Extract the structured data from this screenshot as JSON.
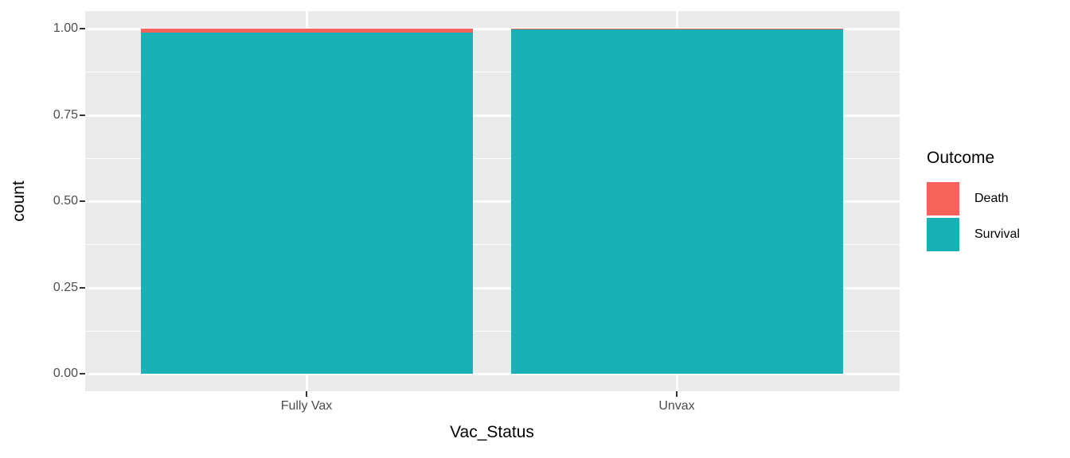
{
  "chart_data": {
    "type": "bar",
    "stacked": true,
    "normalized": true,
    "title": "",
    "xlabel": "Vac_Status",
    "ylabel": "count",
    "categories": [
      "Fully Vax",
      "Unvax"
    ],
    "series": [
      {
        "name": "Death",
        "color": "#F5635B",
        "values": [
          0.012,
          0.003
        ]
      },
      {
        "name": "Survival",
        "color": "#18B1B5",
        "values": [
          0.988,
          0.997
        ]
      }
    ],
    "stack_order_note": "first series (Death) stacks on top",
    "y_ticks": [
      {
        "value": 0.0,
        "label": "0.00"
      },
      {
        "value": 0.25,
        "label": "0.25"
      },
      {
        "value": 0.5,
        "label": "0.50"
      },
      {
        "value": 0.75,
        "label": "0.75"
      },
      {
        "value": 1.0,
        "label": "1.00"
      }
    ],
    "y_minor_ticks": [
      0.125,
      0.375,
      0.625,
      0.875
    ],
    "ylim": [
      0,
      1
    ],
    "grid": true,
    "legend_title": "Outcome",
    "legend_position": "right",
    "colors": {
      "panel_background": "#EBEBEB",
      "gridline": "#FFFFFF",
      "axis_text": "#4D4D4D",
      "axis_title": "#000000",
      "tick_mark": "#333333"
    }
  }
}
